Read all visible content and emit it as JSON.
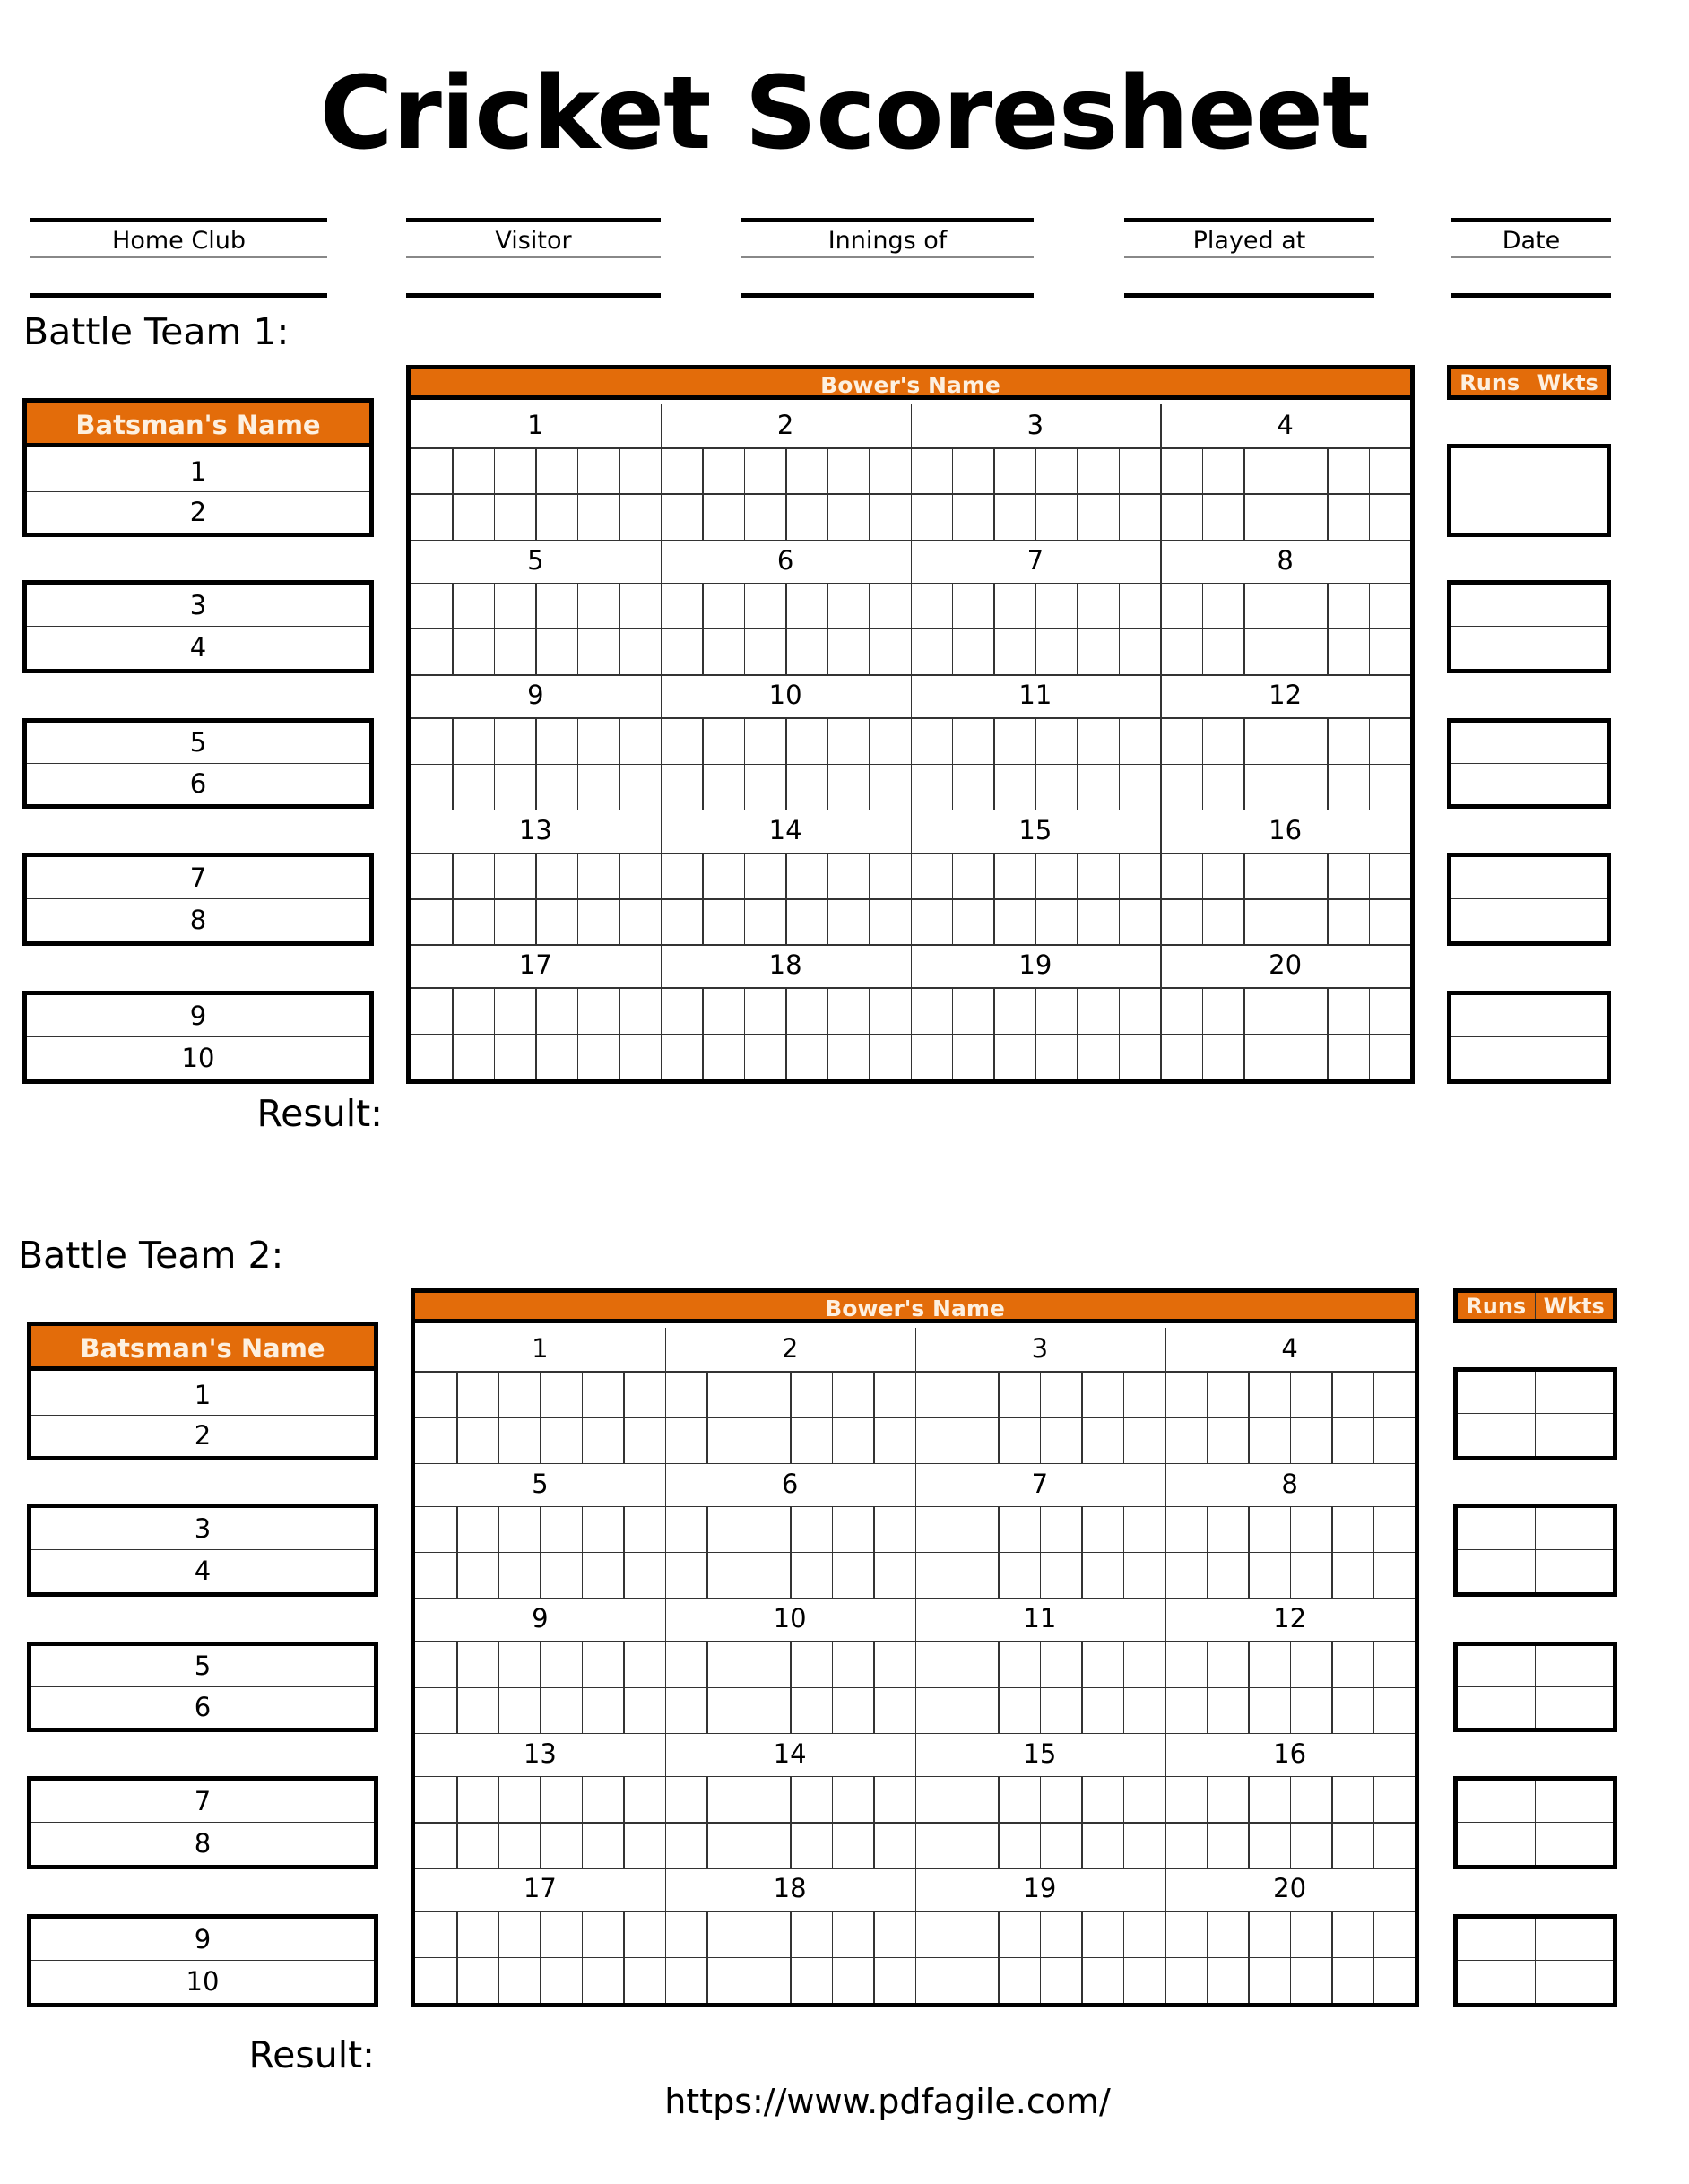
{
  "title": "Cricket Scoresheet",
  "header_fields": [
    "Home Club",
    "Visitor",
    "Innings of",
    "Played at",
    "Date"
  ],
  "colors": {
    "accent": "#e36c0a",
    "border": "#000000"
  },
  "teams": [
    {
      "label": "Battle Team 1:",
      "batsman_header": "Batsman's Name",
      "batsmen": [
        "1",
        "2",
        "3",
        "4",
        "5",
        "6",
        "7",
        "8",
        "9",
        "10"
      ],
      "bowler_header": "Bower's Name",
      "overs": [
        "1",
        "2",
        "3",
        "4",
        "5",
        "6",
        "7",
        "8",
        "9",
        "10",
        "11",
        "12",
        "13",
        "14",
        "15",
        "16",
        "17",
        "18",
        "19",
        "20"
      ],
      "runs_label": "Runs",
      "wkts_label": "Wkts",
      "result_label": "Result:"
    },
    {
      "label": "Battle Team 2:",
      "batsman_header": "Batsman's Name",
      "batsmen": [
        "1",
        "2",
        "3",
        "4",
        "5",
        "6",
        "7",
        "8",
        "9",
        "10"
      ],
      "bowler_header": "Bower's Name",
      "overs": [
        "1",
        "2",
        "3",
        "4",
        "5",
        "6",
        "7",
        "8",
        "9",
        "10",
        "11",
        "12",
        "13",
        "14",
        "15",
        "16",
        "17",
        "18",
        "19",
        "20"
      ],
      "runs_label": "Runs",
      "wkts_label": "Wkts",
      "result_label": "Result:"
    }
  ],
  "footer_url": "https://www.pdfagile.com/"
}
